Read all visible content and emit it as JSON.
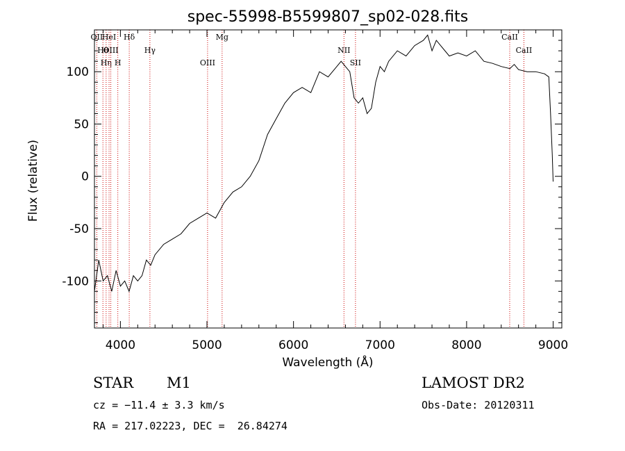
{
  "chart_data": {
    "type": "line",
    "title": "spec-55998-B5599807_sp02-028.fits",
    "xlabel": "Wavelength (Å)",
    "ylabel": "Flux (relative)",
    "xlim": [
      3700,
      9100
    ],
    "ylim": [
      -145,
      140
    ],
    "xticks": [
      4000,
      5000,
      6000,
      7000,
      8000,
      9000
    ],
    "yticks": [
      -100,
      -50,
      0,
      50,
      100
    ],
    "grid": false,
    "line_color": "#000000",
    "marker_line_color": "#cc0000",
    "series": [
      {
        "values_x": [
          3700,
          3750,
          3800,
          3850,
          3900,
          3950,
          4000,
          4050,
          4100,
          4150,
          4200,
          4250,
          4300,
          4350,
          4400,
          4500,
          4600,
          4700,
          4800,
          4900,
          5000,
          5100,
          5200,
          5300,
          5400,
          5500,
          5600,
          5700,
          5800,
          5900,
          6000,
          6100,
          6200,
          6300,
          6400,
          6500,
          6550,
          6600,
          6650,
          6700,
          6750,
          6800,
          6850,
          6900,
          6950,
          7000,
          7050,
          7100,
          7200,
          7300,
          7400,
          7500,
          7550,
          7600,
          7650,
          7700,
          7800,
          7900,
          8000,
          8100,
          8200,
          8300,
          8400,
          8500,
          8550,
          8600,
          8700,
          8800,
          8900,
          8950,
          8970,
          8990,
          9000
        ],
        "values_y": [
          -110,
          -80,
          -100,
          -95,
          -110,
          -90,
          -105,
          -100,
          -110,
          -95,
          -100,
          -95,
          -80,
          -85,
          -75,
          -65,
          -60,
          -55,
          -45,
          -40,
          -35,
          -40,
          -25,
          -15,
          -10,
          0,
          15,
          40,
          55,
          70,
          80,
          85,
          80,
          100,
          95,
          105,
          110,
          105,
          100,
          75,
          70,
          75,
          60,
          65,
          90,
          105,
          100,
          110,
          120,
          115,
          125,
          130,
          135,
          120,
          130,
          125,
          115,
          118,
          115,
          120,
          110,
          108,
          105,
          103,
          107,
          102,
          100,
          100,
          98,
          95,
          60,
          20,
          -5
        ]
      }
    ],
    "markers": [
      {
        "wavelength": 3727,
        "label": "OII"
      },
      {
        "wavelength": 3798,
        "label": "Hθ"
      },
      {
        "wavelength": 3835,
        "label": "Hη"
      },
      {
        "wavelength": 3869,
        "label": "HeI"
      },
      {
        "wavelength": 3889,
        "label": "OIII"
      },
      {
        "wavelength": 3970,
        "label": "H"
      },
      {
        "wavelength": 4102,
        "label": "Hδ"
      },
      {
        "wavelength": 4341,
        "label": "Hγ"
      },
      {
        "wavelength": 5007,
        "label": "OIII"
      },
      {
        "wavelength": 5175,
        "label": "Mg"
      },
      {
        "wavelength": 6583,
        "label": "NII"
      },
      {
        "wavelength": 6716,
        "label": "SII"
      },
      {
        "wavelength": 8498,
        "label": "CaII"
      },
      {
        "wavelength": 8662,
        "label": "CaII"
      }
    ]
  },
  "info": {
    "class": "STAR",
    "subclass": "M1",
    "survey": "LAMOST DR2",
    "cz": "cz = −11.4 ± 3.3 km/s",
    "obs_date": "Obs-Date: 20120311",
    "radec": "RA = 217.02223, DEC =  26.84274"
  }
}
